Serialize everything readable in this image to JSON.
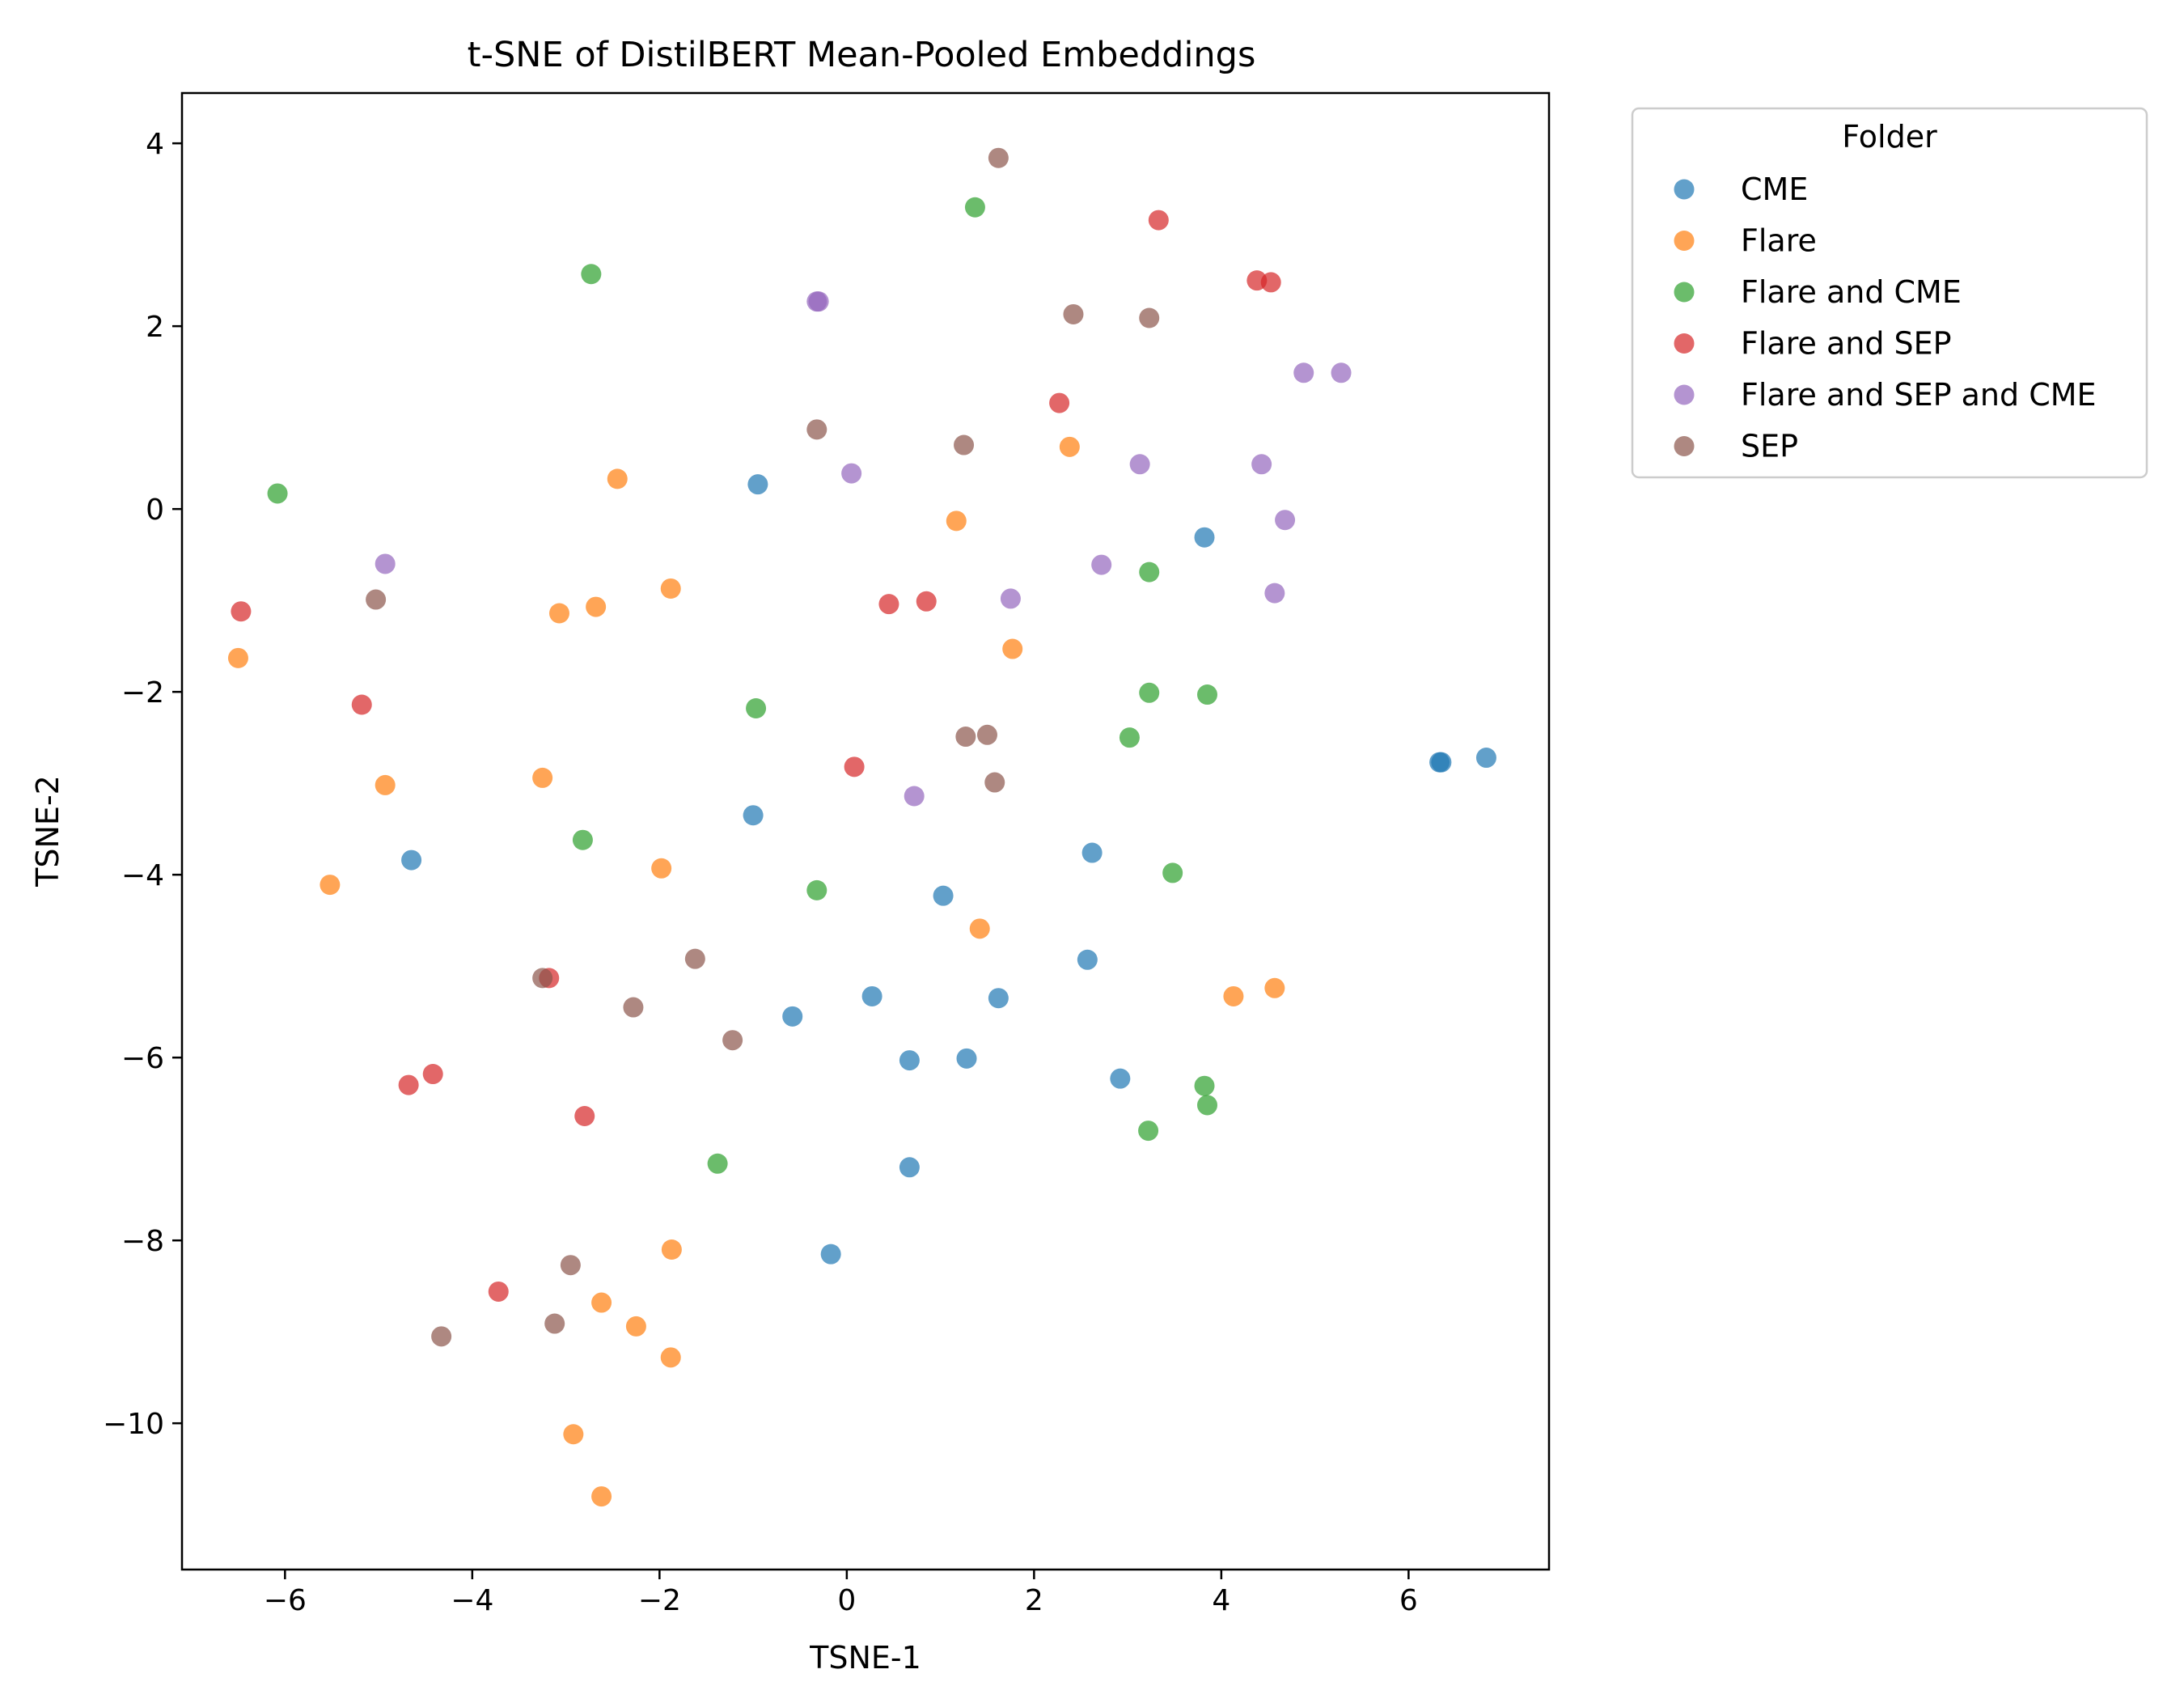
{
  "chart_data": {
    "type": "scatter",
    "title": "t-SNE of DistilBERT Mean-Pooled Embeddings",
    "xlabel": "TSNE-1",
    "ylabel": "TSNE-2",
    "xlim": [
      -7.1,
      7.5
    ],
    "ylim": [
      -11.6,
      4.55
    ],
    "x_ticks": [
      -6,
      -4,
      -2,
      0,
      2,
      4,
      6
    ],
    "y_ticks": [
      -10,
      -8,
      -6,
      -4,
      -2,
      0,
      2,
      4
    ],
    "x_tick_labels": [
      "−6",
      "−4",
      "−2",
      "0",
      "2",
      "4",
      "6"
    ],
    "y_tick_labels": [
      "−10",
      "−8",
      "−6",
      "−4",
      "−2",
      "0",
      "2",
      "4"
    ],
    "legend_title": "Folder",
    "legend_position": "outside-right-top",
    "grid": false,
    "marker_opacity": 0.7,
    "series": [
      {
        "name": "CME",
        "color": "#1f77b4",
        "points": [
          [
            -0.95,
            0.27
          ],
          [
            3.82,
            -0.31
          ],
          [
            6.33,
            -2.77
          ],
          [
            6.35,
            -2.77
          ],
          [
            6.83,
            -2.72
          ],
          [
            -1.0,
            -3.35
          ],
          [
            -4.65,
            -3.84
          ],
          [
            2.62,
            -3.76
          ],
          [
            1.03,
            -4.23
          ],
          [
            2.57,
            -4.93
          ],
          [
            -0.58,
            -5.55
          ],
          [
            0.27,
            -5.33
          ],
          [
            1.62,
            -5.35
          ],
          [
            0.67,
            -6.03
          ],
          [
            1.28,
            -6.01
          ],
          [
            2.92,
            -6.23
          ],
          [
            0.67,
            -7.2
          ],
          [
            -0.17,
            -8.15
          ]
        ]
      },
      {
        "name": "Flare",
        "color": "#ff7f0e",
        "points": [
          [
            -2.45,
            0.33
          ],
          [
            2.38,
            0.68
          ],
          [
            1.17,
            -0.13
          ],
          [
            -1.88,
            -0.87
          ],
          [
            -3.07,
            -1.14
          ],
          [
            -2.68,
            -1.07
          ],
          [
            -6.5,
            -1.63
          ],
          [
            1.77,
            -1.53
          ],
          [
            -4.93,
            -3.02
          ],
          [
            -3.25,
            -2.94
          ],
          [
            -5.52,
            -4.11
          ],
          [
            -1.98,
            -3.93
          ],
          [
            1.42,
            -4.59
          ],
          [
            4.13,
            -5.33
          ],
          [
            4.57,
            -5.24
          ],
          [
            -1.87,
            -8.1
          ],
          [
            -2.62,
            -8.68
          ],
          [
            -2.25,
            -8.94
          ],
          [
            -1.88,
            -9.28
          ],
          [
            -2.92,
            -10.12
          ],
          [
            -2.62,
            -10.8
          ]
        ]
      },
      {
        "name": "Flare and CME",
        "color": "#2ca02c",
        "points": [
          [
            1.37,
            3.3
          ],
          [
            -2.73,
            2.57
          ],
          [
            -6.08,
            0.17
          ],
          [
            3.23,
            -0.69
          ],
          [
            -0.97,
            -2.18
          ],
          [
            3.23,
            -2.01
          ],
          [
            3.85,
            -2.03
          ],
          [
            3.02,
            -2.5
          ],
          [
            -2.82,
            -3.62
          ],
          [
            -0.32,
            -4.17
          ],
          [
            3.48,
            -3.98
          ],
          [
            3.82,
            -6.31
          ],
          [
            3.85,
            -6.52
          ],
          [
            3.22,
            -6.8
          ],
          [
            -1.38,
            -7.16
          ]
        ]
      },
      {
        "name": "Flare and SEP",
        "color": "#d62728",
        "points": [
          [
            3.33,
            3.16
          ],
          [
            4.38,
            2.5
          ],
          [
            4.53,
            2.48
          ],
          [
            2.27,
            1.16
          ],
          [
            0.45,
            -1.04
          ],
          [
            0.85,
            -1.01
          ],
          [
            -6.47,
            -1.12
          ],
          [
            -5.18,
            -2.14
          ],
          [
            0.08,
            -2.82
          ],
          [
            -3.18,
            -5.13
          ],
          [
            -4.68,
            -6.3
          ],
          [
            -4.42,
            -6.18
          ],
          [
            -2.8,
            -6.64
          ],
          [
            -3.72,
            -8.56
          ]
        ]
      },
      {
        "name": "Flare and SEP and CME",
        "color": "#9467bd",
        "points": [
          [
            -0.32,
            2.27
          ],
          [
            -0.3,
            2.27
          ],
          [
            4.88,
            1.49
          ],
          [
            5.28,
            1.49
          ],
          [
            3.13,
            0.49
          ],
          [
            4.43,
            0.49
          ],
          [
            0.05,
            0.39
          ],
          [
            4.68,
            -0.12
          ],
          [
            -4.93,
            -0.6
          ],
          [
            2.72,
            -0.61
          ],
          [
            1.75,
            -0.98
          ],
          [
            4.57,
            -0.92
          ],
          [
            0.72,
            -3.14
          ]
        ]
      },
      {
        "name": "SEP",
        "color": "#8c564b",
        "points": [
          [
            1.62,
            3.84
          ],
          [
            2.42,
            2.13
          ],
          [
            3.23,
            2.09
          ],
          [
            -0.32,
            0.87
          ],
          [
            1.25,
            0.7
          ],
          [
            -5.03,
            -0.99
          ],
          [
            1.27,
            -2.49
          ],
          [
            1.5,
            -2.47
          ],
          [
            1.58,
            -2.99
          ],
          [
            -3.25,
            -5.13
          ],
          [
            -1.62,
            -4.92
          ],
          [
            -2.28,
            -5.45
          ],
          [
            -1.22,
            -5.81
          ],
          [
            -2.95,
            -8.27
          ],
          [
            -3.12,
            -8.91
          ],
          [
            -4.33,
            -9.05
          ]
        ]
      }
    ]
  }
}
